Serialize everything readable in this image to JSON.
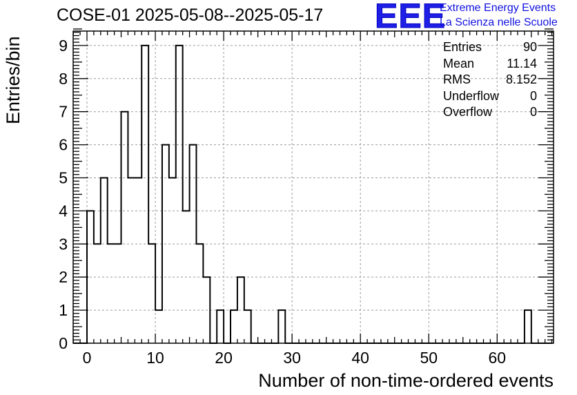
{
  "chart_data": {
    "type": "bar",
    "title": "COSE-01 2025-05-08--2025-05-17",
    "xlabel": "Number of non-time-ordered events",
    "ylabel": "Entries/bin",
    "xlim": [
      -2,
      68
    ],
    "ylim": [
      0,
      9.5
    ],
    "bin_width": 1,
    "x_ticks": [
      0,
      10,
      20,
      30,
      40,
      50,
      60
    ],
    "y_ticks": [
      0,
      1,
      2,
      3,
      4,
      5,
      6,
      7,
      8,
      9
    ],
    "grid": true,
    "bins": [
      {
        "x": 1,
        "value": 4
      },
      {
        "x": 2,
        "value": 3
      },
      {
        "x": 3,
        "value": 5
      },
      {
        "x": 4,
        "value": 3
      },
      {
        "x": 5,
        "value": 3
      },
      {
        "x": 6,
        "value": 7
      },
      {
        "x": 7,
        "value": 5
      },
      {
        "x": 8,
        "value": 5
      },
      {
        "x": 9,
        "value": 9
      },
      {
        "x": 10,
        "value": 3
      },
      {
        "x": 11,
        "value": 1
      },
      {
        "x": 12,
        "value": 6
      },
      {
        "x": 13,
        "value": 5
      },
      {
        "x": 14,
        "value": 9
      },
      {
        "x": 15,
        "value": 4
      },
      {
        "x": 16,
        "value": 6
      },
      {
        "x": 17,
        "value": 3
      },
      {
        "x": 18,
        "value": 2
      },
      {
        "x": 20,
        "value": 1
      },
      {
        "x": 22,
        "value": 1
      },
      {
        "x": 23,
        "value": 2
      },
      {
        "x": 24,
        "value": 1
      },
      {
        "x": 29,
        "value": 1
      },
      {
        "x": 65,
        "value": 1
      }
    ],
    "stats": [
      {
        "label": "Entries",
        "value": "90"
      },
      {
        "label": "Mean",
        "value": "11.14"
      },
      {
        "label": "RMS",
        "value": "8.152"
      },
      {
        "label": "Underflow",
        "value": "0"
      },
      {
        "label": "Overflow",
        "value": "0"
      }
    ],
    "stats_placement": "top-right"
  },
  "logo": {
    "letters": "EEE",
    "line1": "Extreme Energy Events",
    "line2": "La Scienza nelle Scuole",
    "color": "#1f1fe6"
  }
}
